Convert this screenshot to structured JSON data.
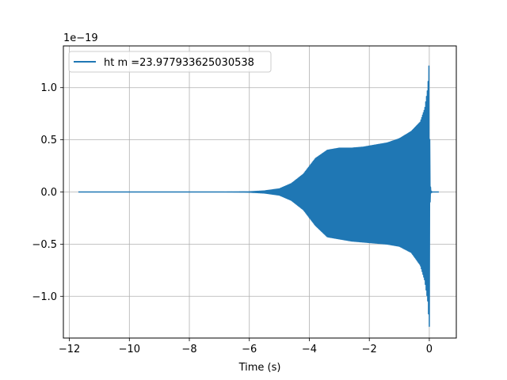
{
  "chart_data": {
    "type": "line",
    "title": "",
    "xlabel": "Time (s)",
    "ylabel": "",
    "offset_label": "1e−19",
    "xlim": [
      -12.2,
      0.9
    ],
    "ylim": [
      -1.4,
      1.4
    ],
    "x_ticks": [
      -12,
      -10,
      -8,
      -6,
      -4,
      -2,
      0
    ],
    "x_tick_labels": [
      "−12",
      "−10",
      "−8",
      "−6",
      "−4",
      "−2",
      "0"
    ],
    "y_ticks": [
      -1.0,
      -0.5,
      0.0,
      0.5,
      1.0
    ],
    "y_tick_labels": [
      "−1.0",
      "−0.5",
      "0.0",
      "0.5",
      "1.0"
    ],
    "grid": true,
    "legend_position": "top-left",
    "series": [
      {
        "name": "ht m =23.977933625030538",
        "color": "#1f77b4",
        "x_range": [
          -11.7,
          0.33
        ],
        "envelope": {
          "x": [
            -11.7,
            -7.0,
            -6.0,
            -5.5,
            -5.0,
            -4.6,
            -4.2,
            -3.8,
            -3.4,
            -3.0,
            -2.6,
            -2.2,
            -1.8,
            -1.4,
            -1.0,
            -0.6,
            -0.3,
            -0.15,
            -0.05,
            0.0,
            0.02,
            0.05,
            0.1,
            0.33
          ],
          "upper": [
            0.0,
            0.0,
            0.002,
            0.01,
            0.03,
            0.08,
            0.17,
            0.32,
            0.4,
            0.42,
            0.42,
            0.43,
            0.45,
            0.47,
            0.51,
            0.58,
            0.67,
            0.8,
            1.0,
            1.28,
            0.12,
            0.01,
            0.0,
            0.0
          ],
          "lower": [
            0.0,
            0.0,
            -0.002,
            -0.01,
            -0.03,
            -0.08,
            -0.17,
            -0.32,
            -0.43,
            -0.45,
            -0.47,
            -0.48,
            -0.49,
            -0.5,
            -0.52,
            -0.58,
            -0.7,
            -0.85,
            -1.05,
            -1.3,
            -0.12,
            -0.01,
            0.0,
            0.0
          ]
        }
      }
    ]
  }
}
